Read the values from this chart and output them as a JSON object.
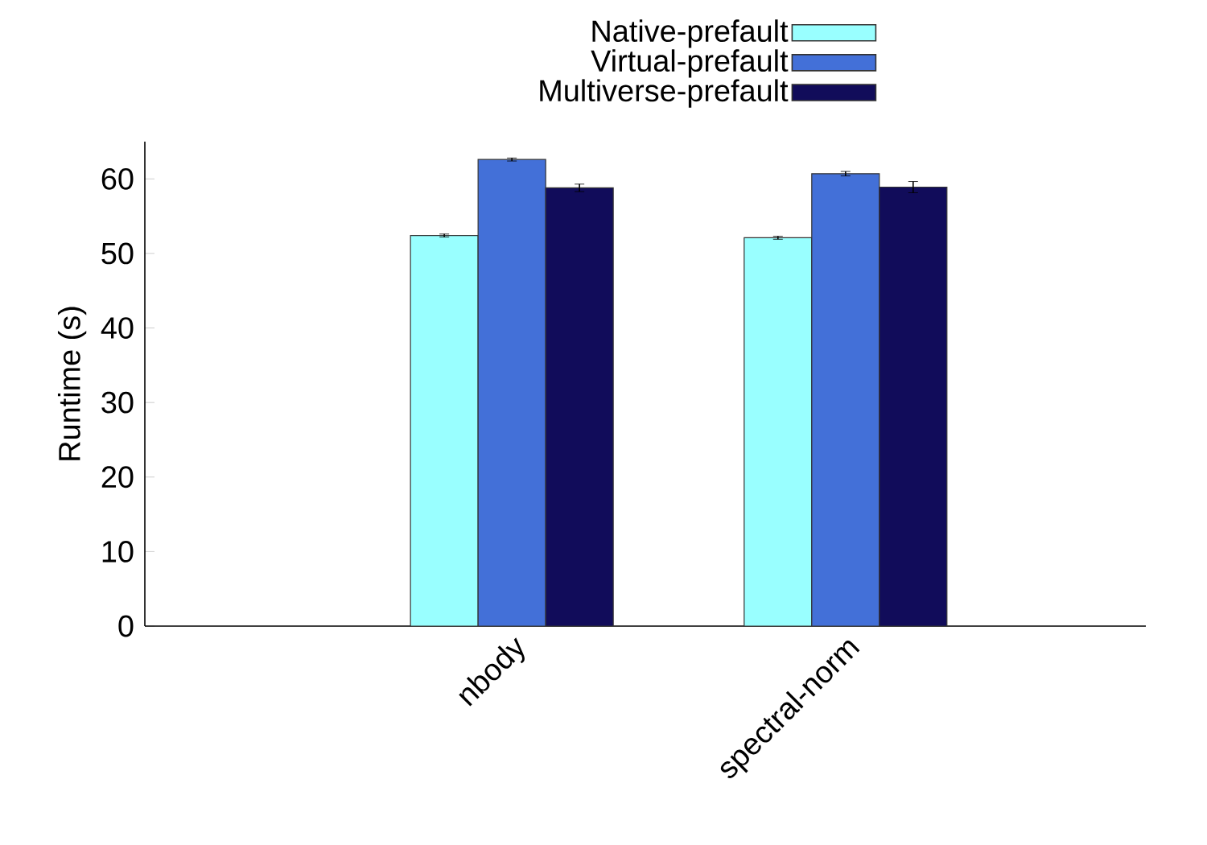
{
  "chart_data": {
    "type": "bar",
    "ylabel": "Runtime (s)",
    "categories": [
      "nbody",
      "spectral-norm"
    ],
    "series": [
      {
        "name": "Native-prefault",
        "color": "#99ffff",
        "values": [
          52.4,
          52.1
        ],
        "errors": [
          0.2,
          0.2
        ]
      },
      {
        "name": "Virtual-prefault",
        "color": "#4370d8",
        "values": [
          62.6,
          60.7
        ],
        "errors": [
          0.2,
          0.3
        ]
      },
      {
        "name": "Multiverse-prefault",
        "color": "#110c5a",
        "values": [
          58.8,
          58.9
        ],
        "errors": [
          0.5,
          0.75
        ]
      }
    ],
    "ylim": [
      0,
      65
    ],
    "yticks": [
      0,
      10,
      20,
      30,
      40,
      50,
      60
    ],
    "grid": false,
    "legend": "top"
  }
}
